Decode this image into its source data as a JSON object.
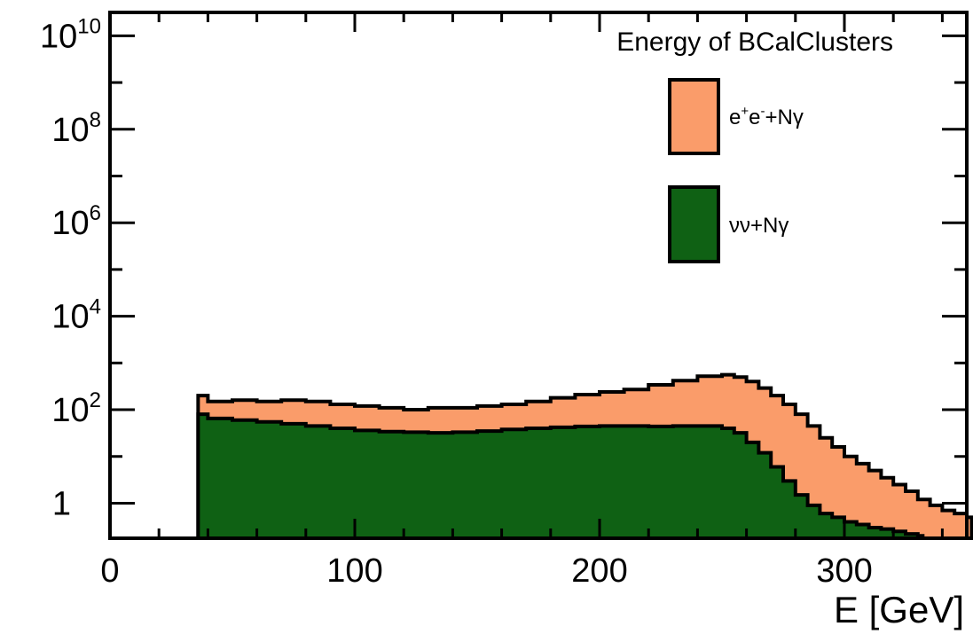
{
  "chart_data": {
    "type": "area",
    "title": "",
    "xlabel": "E [GeV]",
    "ylabel": "",
    "xlim": [
      0,
      350
    ],
    "ylim_log10": [
      -0.75,
      10.5
    ],
    "yscale": "log",
    "grid": false,
    "legend_position": "top-right",
    "legend_title": "Energy of BCalClusters",
    "x_ticks": [
      0,
      100,
      200,
      300
    ],
    "y_ticks": [
      {
        "value": 1,
        "base": "1",
        "exp": ""
      },
      {
        "value": 100,
        "base": "10",
        "exp": "2"
      },
      {
        "value": 10000,
        "base": "10",
        "exp": "4"
      },
      {
        "value": 1000000,
        "base": "10",
        "exp": "6"
      },
      {
        "value": 100000000,
        "base": "10",
        "exp": "8"
      },
      {
        "value": 10000000000,
        "base": "10",
        "exp": "10"
      }
    ],
    "series": [
      {
        "name": "e+e-+Nγ",
        "label_parts": [
          "e",
          "+",
          "e",
          "-",
          "+Nγ"
        ],
        "color": "#fa9c6a",
        "x": [
          36,
          40,
          50,
          60,
          70,
          80,
          90,
          100,
          110,
          120,
          130,
          140,
          150,
          160,
          170,
          180,
          190,
          200,
          210,
          220,
          230,
          240,
          250,
          255,
          260,
          265,
          270,
          275,
          280,
          285,
          290,
          295,
          300,
          305,
          310,
          315,
          320,
          325,
          330,
          335,
          340,
          345,
          350
        ],
        "y": [
          200,
          150,
          160,
          150,
          160,
          150,
          130,
          120,
          110,
          100,
          110,
          110,
          120,
          130,
          150,
          180,
          210,
          240,
          270,
          340,
          420,
          520,
          560,
          500,
          400,
          290,
          200,
          130,
          80,
          45,
          25,
          16,
          10,
          7,
          5,
          3.5,
          2.5,
          1.8,
          1.2,
          0.9,
          0.7,
          0.6,
          0.5
        ]
      },
      {
        "name": "νν+Nγ",
        "label_parts": [
          "νν+Nγ"
        ],
        "color": "#0f6114",
        "x": [
          36,
          40,
          50,
          60,
          70,
          80,
          90,
          100,
          110,
          120,
          130,
          140,
          150,
          160,
          170,
          180,
          190,
          200,
          210,
          220,
          230,
          240,
          250,
          255,
          260,
          265,
          270,
          275,
          280,
          285,
          290,
          295,
          300,
          305,
          310,
          315,
          320,
          325,
          330
        ],
        "y": [
          80,
          65,
          60,
          55,
          50,
          45,
          40,
          36,
          34,
          33,
          32,
          33,
          35,
          38,
          40,
          42,
          44,
          45,
          45,
          44,
          45,
          45,
          40,
          32,
          20,
          12,
          6,
          3,
          1.5,
          0.9,
          0.6,
          0.5,
          0.4,
          0.35,
          0.3,
          0.28,
          0.25,
          0.22,
          0.2
        ]
      }
    ]
  }
}
